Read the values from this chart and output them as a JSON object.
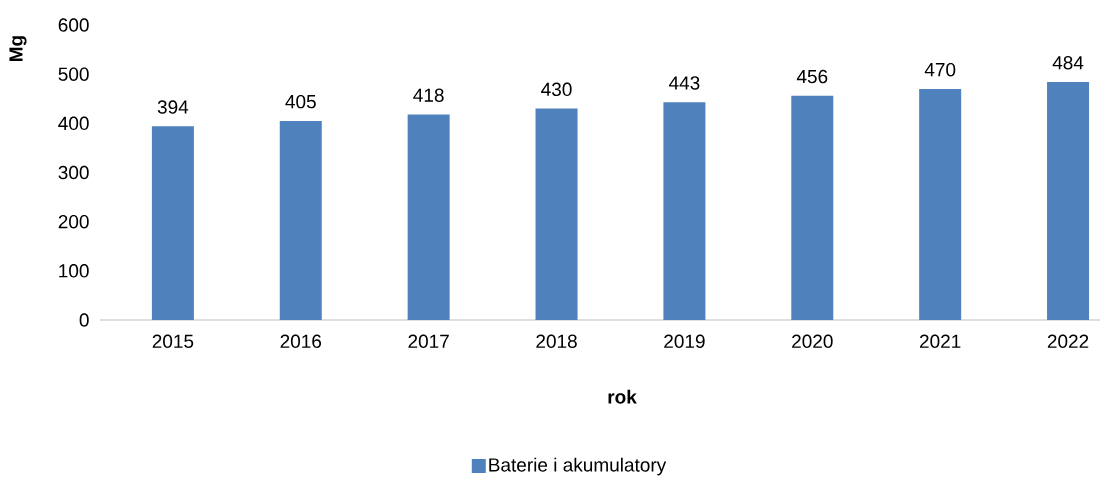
{
  "chart_data": {
    "type": "bar",
    "xlabel": "rok",
    "ylabel": "Mg",
    "categories": [
      "2015",
      "2016",
      "2017",
      "2018",
      "2019",
      "2020",
      "2021",
      "2022"
    ],
    "series": [
      {
        "name": "Baterie i akumulatory",
        "color": "#4f81bd",
        "values": [
          394,
          405,
          418,
          430,
          443,
          456,
          470,
          484
        ]
      }
    ],
    "ylim": [
      0,
      600
    ],
    "yticks": [
      0,
      100,
      200,
      300,
      400,
      500,
      600
    ],
    "data_labels": true,
    "legend": "bottom",
    "grid": false
  }
}
